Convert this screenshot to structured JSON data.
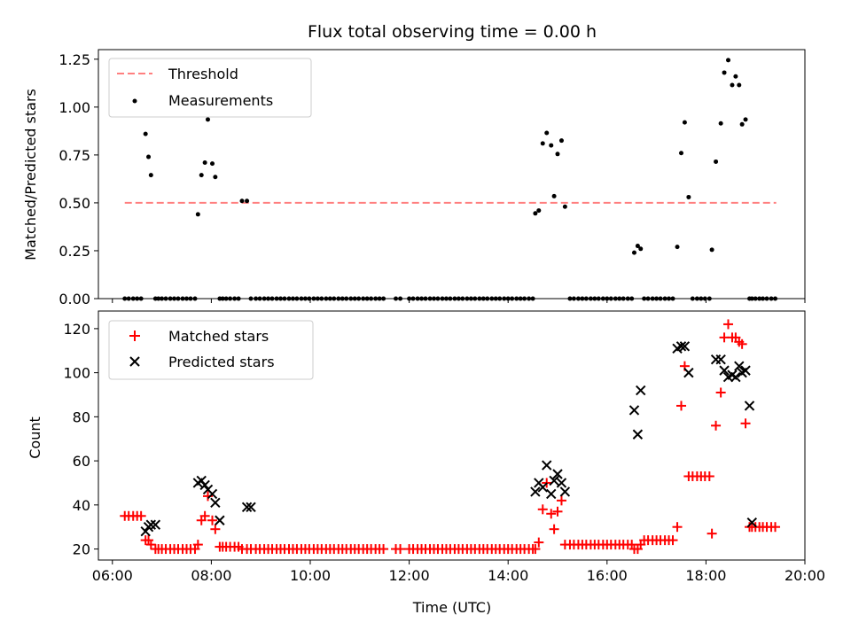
{
  "chart_data": [
    {
      "type": "scatter",
      "title": "Flux total observing time = 0.00 h",
      "xlabel": "",
      "ylabel": "Matched/Predicted stars",
      "xlim": [
        5.717,
        20.0
      ],
      "ylim": [
        0,
        1.3
      ],
      "x_is_hours_utc": true,
      "xticks": [],
      "yticks": [
        0.0,
        0.25,
        0.5,
        0.75,
        1.0,
        1.25
      ],
      "ytick_labels": [
        "0.00",
        "0.25",
        "0.50",
        "0.75",
        "1.00",
        "1.25"
      ],
      "legend_position": "upper-left",
      "legend": [
        {
          "label": "Threshold",
          "marker": "dashed-line",
          "color": "#ff7f7f"
        },
        {
          "label": "Measurements",
          "marker": "dot",
          "color": "#000000"
        }
      ],
      "series": [
        {
          "name": "Threshold",
          "kind": "line",
          "style": "dashed",
          "color": "#ff7f7f",
          "x": [
            6.25,
            19.42
          ],
          "y": [
            0.5,
            0.5
          ]
        },
        {
          "name": "Measurements",
          "kind": "scatter",
          "marker": "dot",
          "color": "#000000",
          "x": [
            6.25,
            6.33,
            6.42,
            6.5,
            6.58,
            6.67,
            6.73,
            6.78,
            6.87,
            6.93,
            7.0,
            7.08,
            7.17,
            7.25,
            7.33,
            7.42,
            7.5,
            7.58,
            7.67,
            7.73,
            7.8,
            7.87,
            7.93,
            8.02,
            8.08,
            8.17,
            8.23,
            8.3,
            8.38,
            8.47,
            8.55,
            8.62,
            8.72,
            8.8,
            8.9,
            8.98,
            9.07,
            9.15,
            9.23,
            9.32,
            9.4,
            9.48,
            9.57,
            9.65,
            9.73,
            9.82,
            9.9,
            9.98,
            10.07,
            10.15,
            10.23,
            10.32,
            10.4,
            10.48,
            10.57,
            10.65,
            10.73,
            10.82,
            10.9,
            10.98,
            11.07,
            11.15,
            11.23,
            11.32,
            11.4,
            11.48,
            11.73,
            11.82,
            12.0,
            12.08,
            12.17,
            12.25,
            12.33,
            12.42,
            12.5,
            12.58,
            12.67,
            12.75,
            12.83,
            12.92,
            13.0,
            13.08,
            13.17,
            13.25,
            13.33,
            13.42,
            13.5,
            13.58,
            13.67,
            13.75,
            13.83,
            13.92,
            14.0,
            14.08,
            14.17,
            14.25,
            14.33,
            14.42,
            14.5,
            14.55,
            14.62,
            14.7,
            14.78,
            14.87,
            14.93,
            15.0,
            15.08,
            15.15,
            15.25,
            15.33,
            15.42,
            15.5,
            15.58,
            15.67,
            15.75,
            15.83,
            15.92,
            16.0,
            16.08,
            16.17,
            16.25,
            16.33,
            16.42,
            16.5,
            16.55,
            16.62,
            16.68,
            16.75,
            16.83,
            16.92,
            17.0,
            17.08,
            17.17,
            17.25,
            17.33,
            17.42,
            17.5,
            17.57,
            17.65,
            17.73,
            17.82,
            17.9,
            17.98,
            18.07,
            18.12,
            18.2,
            18.3,
            18.37,
            18.45,
            18.53,
            18.6,
            18.67,
            18.73,
            18.8,
            18.88,
            18.93,
            19.0,
            19.08,
            19.15,
            19.23,
            19.32,
            19.4
          ],
          "y": [
            0,
            0,
            0,
            0,
            0,
            0.86,
            0.74,
            0.645,
            0,
            0,
            0,
            0,
            0,
            0,
            0,
            0,
            0,
            0,
            0,
            0.44,
            0.645,
            0.71,
            0.935,
            0.705,
            0.635,
            0,
            0,
            0,
            0,
            0,
            0,
            0.51,
            0.51,
            0,
            0,
            0,
            0,
            0,
            0,
            0,
            0,
            0,
            0,
            0,
            0,
            0,
            0,
            0,
            0,
            0,
            0,
            0,
            0,
            0,
            0,
            0,
            0,
            0,
            0,
            0,
            0,
            0,
            0,
            0,
            0,
            0,
            0,
            0,
            0,
            0,
            0,
            0,
            0,
            0,
            0,
            0,
            0,
            0,
            0,
            0,
            0,
            0,
            0,
            0,
            0,
            0,
            0,
            0,
            0,
            0,
            0,
            0,
            0,
            0,
            0,
            0,
            0,
            0,
            0,
            0.445,
            0.46,
            0.81,
            0.865,
            0.8,
            0.535,
            0.755,
            0.825,
            0.48,
            0,
            0,
            0,
            0,
            0,
            0,
            0,
            0,
            0,
            0,
            0,
            0,
            0,
            0,
            0,
            0,
            0.24,
            0.275,
            0.26,
            0,
            0,
            0,
            0,
            0,
            0,
            0,
            0,
            0.27,
            0.76,
            0.92,
            0.53,
            0,
            0,
            0,
            0,
            0,
            0.255,
            0.715,
            0.915,
            1.18,
            1.245,
            1.115,
            1.16,
            1.115,
            0.91,
            0.935,
            0,
            0,
            0,
            0,
            0,
            0,
            0,
            0
          ]
        }
      ]
    },
    {
      "type": "scatter",
      "title": "",
      "xlabel": "Time (UTC)",
      "ylabel": "Count",
      "xlim": [
        5.717,
        20.0
      ],
      "ylim": [
        15,
        128
      ],
      "x_is_hours_utc": true,
      "xticks": [
        6,
        8,
        10,
        12,
        14,
        16,
        18,
        20
      ],
      "xtick_labels": [
        "06:00",
        "08:00",
        "10:00",
        "12:00",
        "14:00",
        "16:00",
        "18:00",
        "20:00"
      ],
      "yticks": [
        20,
        40,
        60,
        80,
        100,
        120
      ],
      "ytick_labels": [
        "20",
        "40",
        "60",
        "80",
        "100",
        "120"
      ],
      "legend_position": "upper-left",
      "legend": [
        {
          "label": "Matched stars",
          "marker": "plus",
          "color": "#ff0000"
        },
        {
          "label": "Predicted stars",
          "marker": "x",
          "color": "#000000"
        }
      ],
      "series": [
        {
          "name": "Matched stars",
          "kind": "scatter",
          "marker": "plus",
          "color": "#ff0000",
          "x": [
            6.25,
            6.33,
            6.42,
            6.5,
            6.58,
            6.67,
            6.73,
            6.78,
            6.87,
            6.93,
            7.0,
            7.08,
            7.17,
            7.25,
            7.33,
            7.42,
            7.5,
            7.58,
            7.67,
            7.73,
            7.8,
            7.87,
            7.93,
            8.02,
            8.08,
            8.17,
            8.23,
            8.3,
            8.38,
            8.47,
            8.55,
            8.62,
            8.72,
            8.8,
            8.9,
            8.98,
            9.07,
            9.15,
            9.23,
            9.32,
            9.4,
            9.48,
            9.57,
            9.65,
            9.73,
            9.82,
            9.9,
            9.98,
            10.07,
            10.15,
            10.23,
            10.32,
            10.4,
            10.48,
            10.57,
            10.65,
            10.73,
            10.82,
            10.9,
            10.98,
            11.07,
            11.15,
            11.23,
            11.32,
            11.4,
            11.48,
            11.73,
            11.82,
            12.0,
            12.08,
            12.17,
            12.25,
            12.33,
            12.42,
            12.5,
            12.58,
            12.67,
            12.75,
            12.83,
            12.92,
            13.0,
            13.08,
            13.17,
            13.25,
            13.33,
            13.42,
            13.5,
            13.58,
            13.67,
            13.75,
            13.83,
            13.92,
            14.0,
            14.08,
            14.17,
            14.25,
            14.33,
            14.42,
            14.5,
            14.55,
            14.62,
            14.7,
            14.78,
            14.87,
            14.93,
            15.0,
            15.08,
            15.15,
            15.25,
            15.33,
            15.42,
            15.5,
            15.58,
            15.67,
            15.75,
            15.83,
            15.92,
            16.0,
            16.08,
            16.17,
            16.25,
            16.33,
            16.42,
            16.5,
            16.55,
            16.62,
            16.68,
            16.75,
            16.83,
            16.92,
            17.0,
            17.08,
            17.17,
            17.25,
            17.33,
            17.42,
            17.5,
            17.57,
            17.65,
            17.73,
            17.82,
            17.9,
            17.98,
            18.07,
            18.12,
            18.2,
            18.3,
            18.37,
            18.45,
            18.53,
            18.6,
            18.67,
            18.73,
            18.8,
            18.88,
            18.93,
            19.0,
            19.08,
            19.15,
            19.23,
            19.32,
            19.4
          ],
          "y": [
            35,
            35,
            35,
            35,
            35,
            24,
            24,
            22,
            20,
            20,
            20,
            20,
            20,
            20,
            20,
            20,
            20,
            20,
            20,
            22,
            33,
            35,
            44,
            33,
            29,
            21,
            21,
            21,
            21,
            21,
            21,
            20,
            20,
            20,
            20,
            20,
            20,
            20,
            20,
            20,
            20,
            20,
            20,
            20,
            20,
            20,
            20,
            20,
            20,
            20,
            20,
            20,
            20,
            20,
            20,
            20,
            20,
            20,
            20,
            20,
            20,
            20,
            20,
            20,
            20,
            20,
            20,
            20,
            20,
            20,
            20,
            20,
            20,
            20,
            20,
            20,
            20,
            20,
            20,
            20,
            20,
            20,
            20,
            20,
            20,
            20,
            20,
            20,
            20,
            20,
            20,
            20,
            20,
            20,
            20,
            20,
            20,
            20,
            20,
            20,
            23,
            38,
            50,
            36,
            29,
            37,
            42,
            22,
            22,
            22,
            22,
            22,
            22,
            22,
            22,
            22,
            22,
            22,
            22,
            22,
            22,
            22,
            22,
            22,
            20,
            20,
            22,
            24,
            24,
            24,
            24,
            24,
            24,
            24,
            24,
            30,
            85,
            103,
            53,
            53,
            53,
            53,
            53,
            53,
            27,
            76,
            91,
            116,
            122,
            116,
            116,
            114,
            113,
            77,
            30,
            30,
            30,
            30,
            30,
            30,
            30,
            30
          ]
        },
        {
          "name": "Predicted stars",
          "kind": "scatter",
          "marker": "x",
          "color": "#000000",
          "x": [
            6.67,
            6.73,
            6.78,
            6.87,
            7.73,
            7.8,
            7.87,
            7.93,
            8.02,
            8.08,
            8.17,
            8.72,
            8.8,
            14.55,
            14.62,
            14.7,
            14.78,
            14.87,
            14.93,
            15.0,
            15.08,
            15.15,
            16.55,
            16.62,
            16.68,
            17.42,
            17.5,
            17.57,
            17.65,
            18.2,
            18.3,
            18.37,
            18.45,
            18.53,
            18.6,
            18.67,
            18.73,
            18.8,
            18.88,
            18.93
          ],
          "y": [
            28,
            30,
            31,
            31,
            50,
            51,
            49,
            47,
            45,
            41,
            33,
            39,
            39,
            46,
            50,
            48,
            58,
            45,
            51,
            54,
            50,
            46,
            83,
            72,
            92,
            111,
            112,
            112,
            100,
            106,
            106,
            101,
            98,
            99,
            98,
            103,
            100,
            101,
            85,
            32
          ]
        }
      ]
    }
  ]
}
